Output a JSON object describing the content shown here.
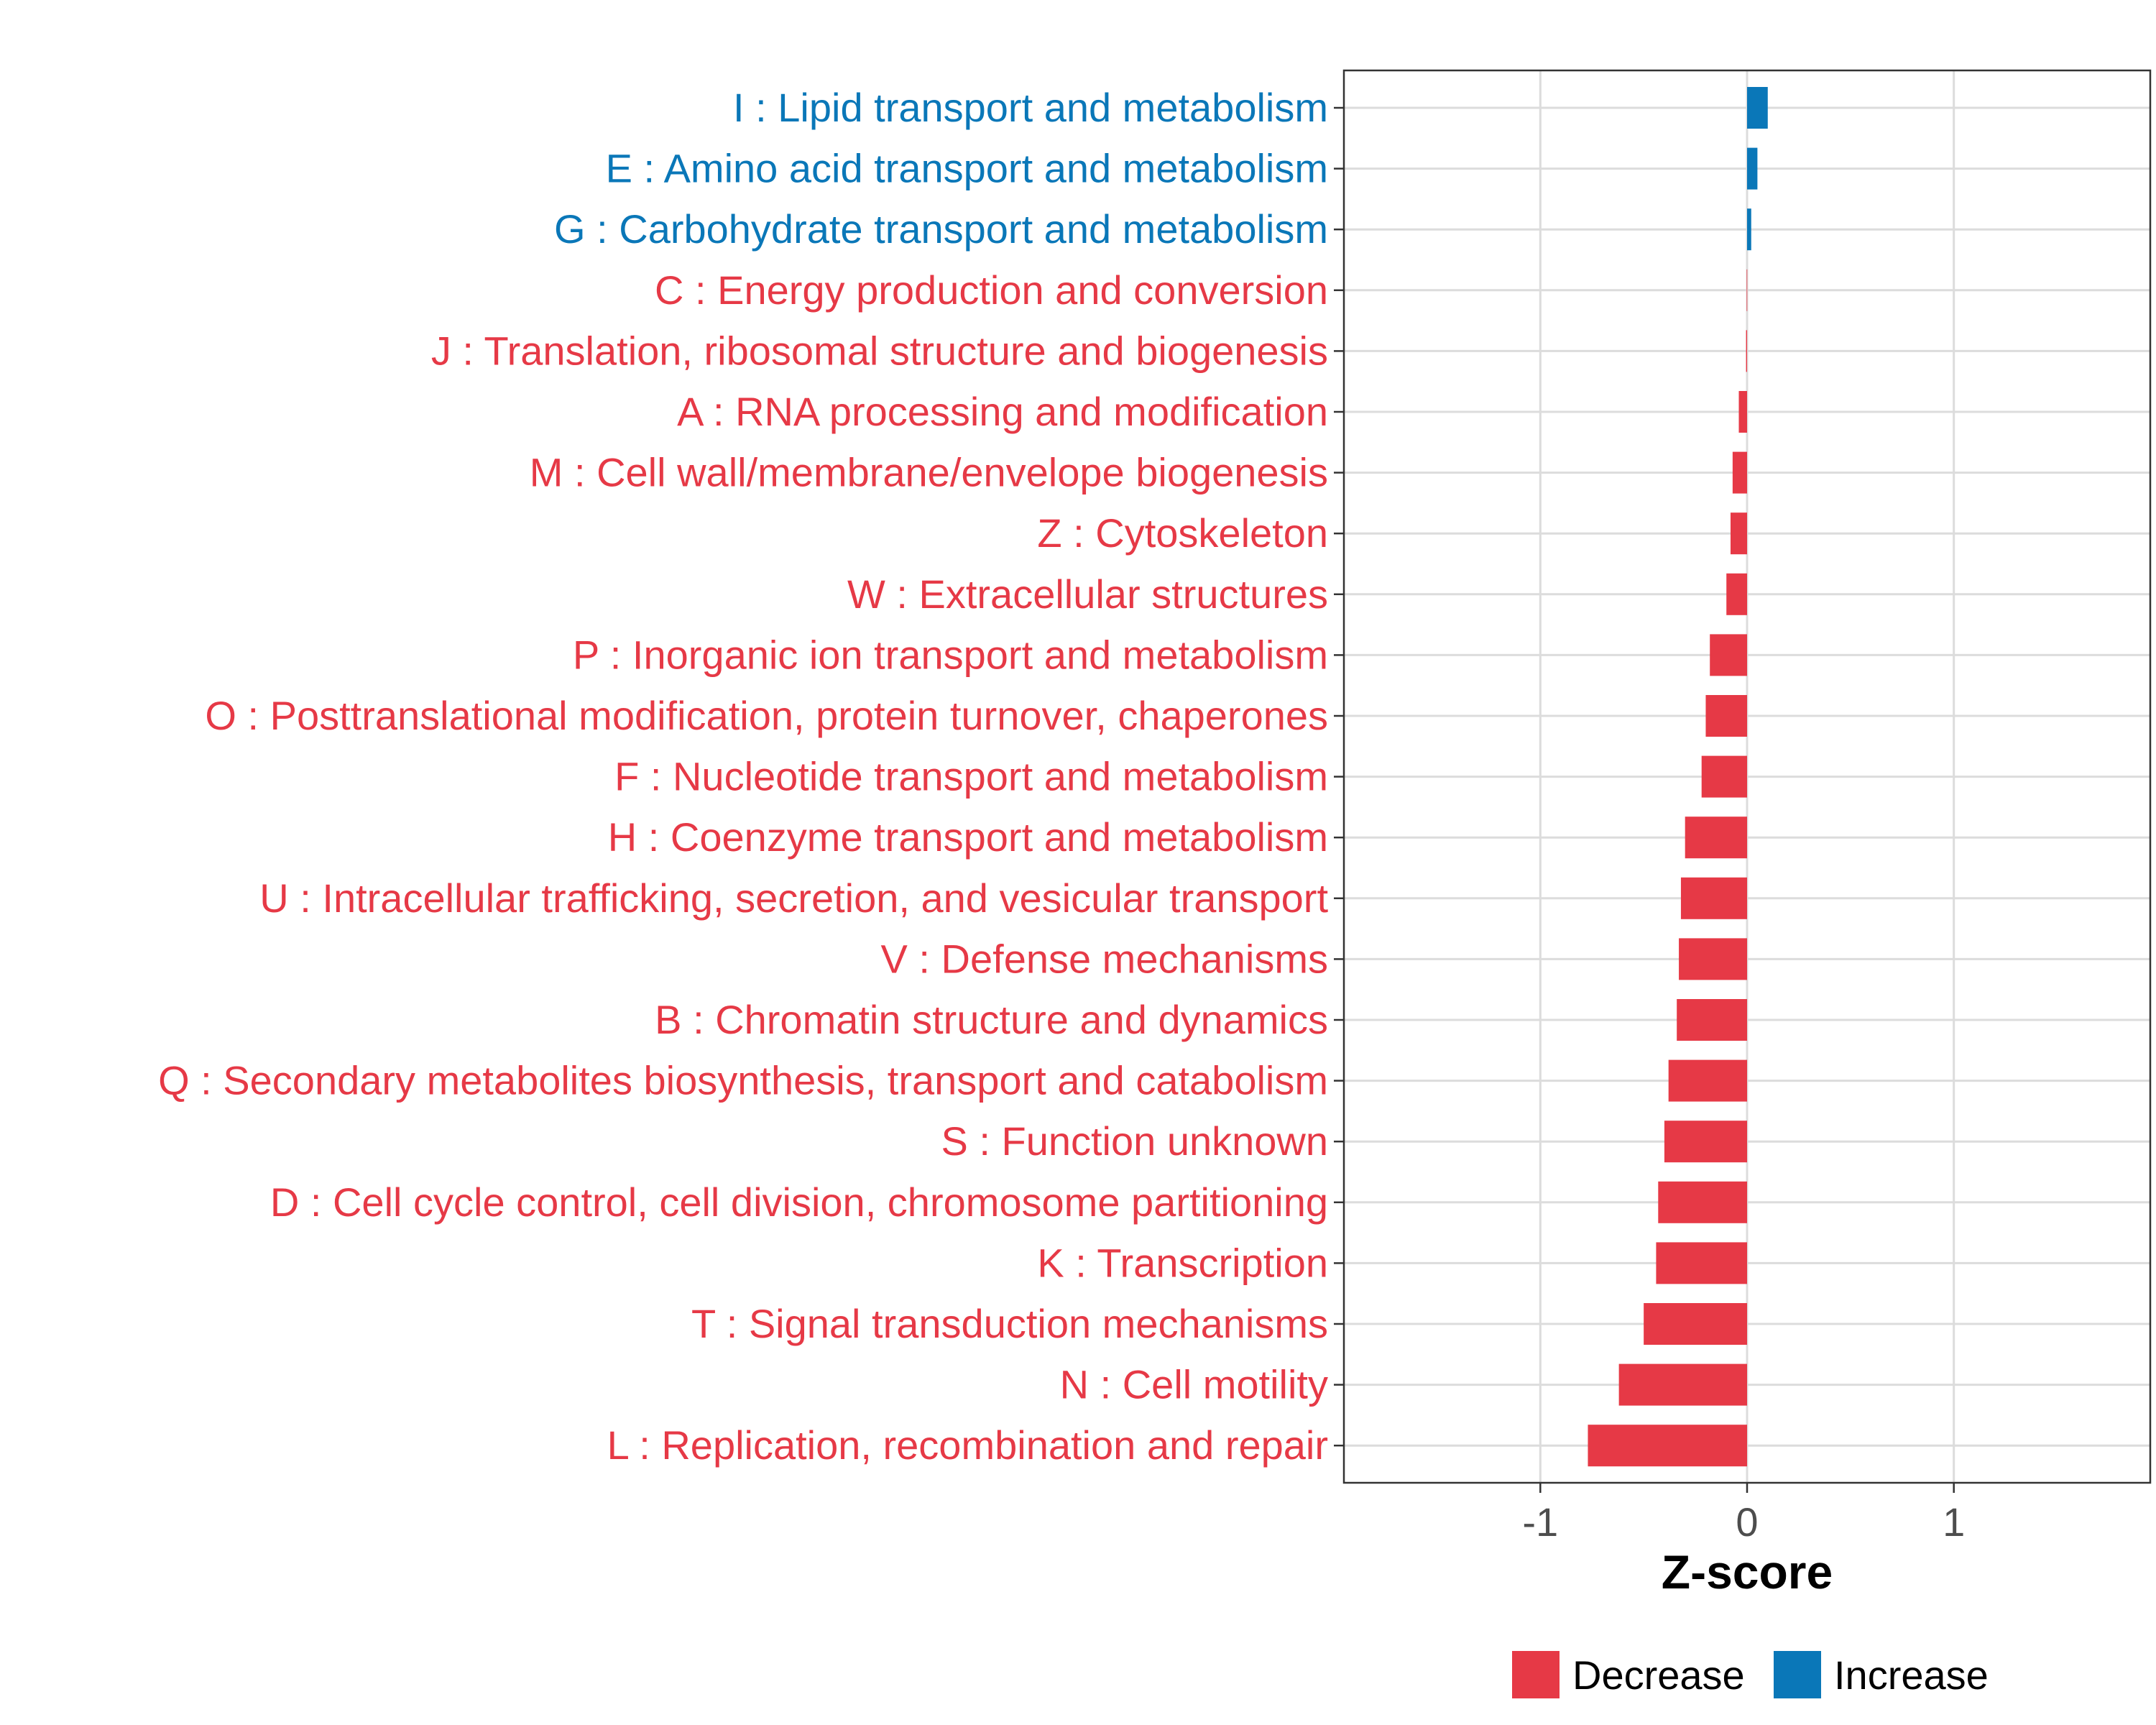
{
  "chart_data": {
    "type": "bar",
    "orientation": "horizontal",
    "xlabel": "Z-score",
    "xlim": [
      -1.95,
      1.95
    ],
    "x_ticks": [
      -1,
      0,
      1
    ],
    "x_tick_labels": [
      "-1",
      "0",
      "1"
    ],
    "grid": true,
    "colors": {
      "Decrease": "#e63946",
      "Increase": "#0a77b8"
    },
    "legend": {
      "position": "bottom",
      "entries": [
        "Decrease",
        "Increase"
      ]
    },
    "categories": [
      "I : Lipid transport and metabolism",
      "E : Amino acid transport and metabolism",
      "G : Carbohydrate transport and metabolism",
      "C : Energy production and conversion",
      "J : Translation, ribosomal structure and biogenesis",
      "A : RNA processing and modification",
      "M : Cell wall/membrane/envelope biogenesis",
      "Z : Cytoskeleton",
      "W : Extracellular structures",
      "P : Inorganic ion transport and metabolism",
      "O : Posttranslational modification, protein turnover, chaperones",
      "F : Nucleotide transport and metabolism",
      "H : Coenzyme transport and metabolism",
      "U : Intracellular trafficking, secretion, and vesicular transport",
      "V : Defense mechanisms",
      "B : Chromatin structure and dynamics",
      "Q : Secondary metabolites biosynthesis, transport and catabolism",
      "S : Function unknown",
      "D : Cell cycle control, cell division, chromosome partitioning",
      "K : Transcription",
      "T : Signal transduction mechanisms",
      "N : Cell motility",
      "L : Replication, recombination and repair"
    ],
    "values": [
      0.1,
      0.05,
      0.02,
      -0.002,
      -0.005,
      -0.04,
      -0.07,
      -0.08,
      -0.1,
      -0.18,
      -0.2,
      -0.22,
      -0.3,
      -0.32,
      -0.33,
      -0.34,
      -0.38,
      -0.4,
      -0.43,
      -0.44,
      -0.5,
      -0.62,
      -0.77
    ],
    "groups": [
      "Increase",
      "Increase",
      "Increase",
      "Decrease",
      "Decrease",
      "Decrease",
      "Decrease",
      "Decrease",
      "Decrease",
      "Decrease",
      "Decrease",
      "Decrease",
      "Decrease",
      "Decrease",
      "Decrease",
      "Decrease",
      "Decrease",
      "Decrease",
      "Decrease",
      "Decrease",
      "Decrease",
      "Decrease",
      "Decrease"
    ]
  }
}
